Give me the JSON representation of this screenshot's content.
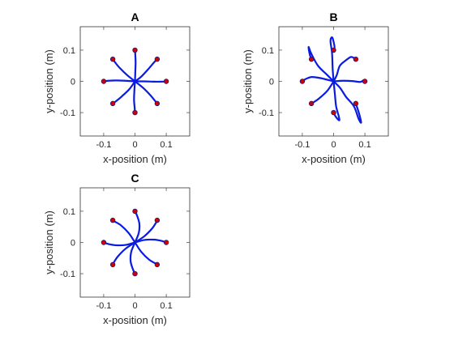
{
  "chart_data": [
    {
      "type": "line",
      "title": "A",
      "xlabel": "x-position (m)",
      "ylabel": "y-position (m)",
      "xlim": [
        -0.175,
        0.175
      ],
      "ylim": [
        -0.175,
        0.175
      ],
      "xticks": [
        -0.1,
        0,
        0.1
      ],
      "yticks": [
        -0.1,
        0,
        0.1
      ],
      "xtick_labels": [
        "-0.1",
        "0",
        "0.1"
      ],
      "ytick_labels": [
        "-0.1",
        "0",
        "0.1"
      ],
      "grid": false,
      "colors": {
        "trajectory": "#0a1be0",
        "target": "#d40000"
      },
      "targets": [
        [
          0.1,
          0
        ],
        [
          0.071,
          0.071
        ],
        [
          0,
          0.1
        ],
        [
          -0.071,
          0.071
        ],
        [
          -0.1,
          0
        ],
        [
          -0.071,
          -0.071
        ],
        [
          0,
          -0.1
        ],
        [
          0.071,
          -0.071
        ]
      ],
      "series": [
        {
          "x": [
            0,
            0.03,
            0.06,
            0.085,
            0.1
          ],
          "y": [
            0,
            0.0,
            -0.001,
            -0.001,
            0
          ]
        },
        {
          "x": [
            0,
            0.02,
            0.045,
            0.062,
            0.071
          ],
          "y": [
            0,
            0.015,
            0.042,
            0.062,
            0.071
          ]
        },
        {
          "x": [
            0,
            0.001,
            0.002,
            0.001,
            0
          ],
          "y": [
            0,
            0.03,
            0.06,
            0.085,
            0.1
          ]
        },
        {
          "x": [
            0,
            -0.025,
            -0.048,
            -0.063,
            -0.071
          ],
          "y": [
            0,
            0.02,
            0.042,
            0.06,
            0.071
          ]
        },
        {
          "x": [
            0,
            -0.03,
            -0.06,
            -0.085,
            -0.1
          ],
          "y": [
            0,
            0.002,
            0.003,
            0.002,
            0
          ]
        },
        {
          "x": [
            0,
            -0.018,
            -0.042,
            -0.06,
            -0.071
          ],
          "y": [
            0,
            -0.025,
            -0.048,
            -0.063,
            -0.071
          ]
        },
        {
          "x": [
            0,
            -0.002,
            -0.003,
            -0.001,
            0
          ],
          "y": [
            0,
            -0.03,
            -0.06,
            -0.085,
            -0.1
          ]
        },
        {
          "x": [
            0,
            0.025,
            0.048,
            0.063,
            0.071
          ],
          "y": [
            0,
            -0.02,
            -0.043,
            -0.061,
            -0.071
          ]
        }
      ]
    },
    {
      "type": "line",
      "title": "B",
      "xlabel": "x-position (m)",
      "ylabel": "y-position (m)",
      "xlim": [
        -0.175,
        0.175
      ],
      "ylim": [
        -0.175,
        0.175
      ],
      "xticks": [
        -0.1,
        0,
        0.1
      ],
      "yticks": [
        -0.1,
        0,
        0.1
      ],
      "xtick_labels": [
        "-0.1",
        "0",
        "0.1"
      ],
      "ytick_labels": [
        "-0.1",
        "0",
        "0.1"
      ],
      "grid": false,
      "colors": {
        "trajectory": "#0a1be0",
        "target": "#d40000"
      },
      "targets": [
        [
          0.1,
          0
        ],
        [
          0.071,
          0.071
        ],
        [
          0,
          0.1
        ],
        [
          -0.071,
          0.071
        ],
        [
          -0.1,
          0
        ],
        [
          -0.071,
          -0.071
        ],
        [
          0,
          -0.1
        ],
        [
          0.071,
          -0.071
        ]
      ],
      "series": [
        {
          "x": [
            0,
            0.03,
            0.06,
            0.085,
            0.095,
            0.1
          ],
          "y": [
            0,
            0.002,
            0.001,
            -0.002,
            0.003,
            0
          ]
        },
        {
          "x": [
            0,
            0.01,
            0.02,
            0.04,
            0.055,
            0.065,
            0.071
          ],
          "y": [
            0,
            0.02,
            0.05,
            0.068,
            0.078,
            0.075,
            0.071
          ]
        },
        {
          "x": [
            0,
            -0.003,
            -0.005,
            -0.01,
            -0.004,
            0.003,
            0
          ],
          "y": [
            0,
            0.04,
            0.09,
            0.13,
            0.14,
            0.11,
            0.1
          ]
        },
        {
          "x": [
            0,
            -0.02,
            -0.05,
            -0.072,
            -0.08,
            -0.076,
            -0.071
          ],
          "y": [
            0,
            0.02,
            0.05,
            0.09,
            0.11,
            0.085,
            0.071
          ]
        },
        {
          "x": [
            0,
            -0.04,
            -0.07,
            -0.088,
            -0.095,
            -0.1
          ],
          "y": [
            0,
            0.01,
            0.014,
            0.008,
            0.004,
            0
          ]
        },
        {
          "x": [
            0,
            -0.02,
            -0.048,
            -0.066,
            -0.074,
            -0.071
          ],
          "y": [
            0,
            -0.03,
            -0.056,
            -0.068,
            -0.074,
            -0.071
          ]
        },
        {
          "x": [
            0,
            0.004,
            0.008,
            0.016,
            0.018,
            0.006,
            0
          ],
          "y": [
            0,
            -0.04,
            -0.08,
            -0.11,
            -0.125,
            -0.112,
            -0.1
          ]
        },
        {
          "x": [
            0,
            0.02,
            0.04,
            0.065,
            0.08,
            0.088,
            0.082,
            0.071
          ],
          "y": [
            0,
            -0.02,
            -0.05,
            -0.08,
            -0.12,
            -0.132,
            -0.105,
            -0.071
          ]
        }
      ]
    },
    {
      "type": "line",
      "title": "C",
      "xlabel": "x-position (m)",
      "ylabel": "y-position (m)",
      "xlim": [
        -0.175,
        0.175
      ],
      "ylim": [
        -0.175,
        0.175
      ],
      "xticks": [
        -0.1,
        0,
        0.1
      ],
      "yticks": [
        -0.1,
        0,
        0.1
      ],
      "xtick_labels": [
        "-0.1",
        "0",
        "0.1"
      ],
      "ytick_labels": [
        "-0.1",
        "0",
        "0.1"
      ],
      "grid": false,
      "colors": {
        "trajectory": "#0a1be0",
        "target": "#d40000"
      },
      "targets": [
        [
          0.1,
          0
        ],
        [
          0.071,
          0.071
        ],
        [
          0,
          0.1
        ],
        [
          -0.071,
          0.071
        ],
        [
          -0.1,
          0
        ],
        [
          -0.071,
          -0.071
        ],
        [
          0,
          -0.1
        ],
        [
          0.071,
          -0.071
        ]
      ],
      "series": [
        {
          "x": [
            0,
            0.03,
            0.06,
            0.085,
            0.1
          ],
          "y": [
            0,
            0.008,
            0.009,
            0.005,
            0
          ]
        },
        {
          "x": [
            0,
            0.03,
            0.055,
            0.067,
            0.071
          ],
          "y": [
            0,
            0.02,
            0.045,
            0.063,
            0.071
          ]
        },
        {
          "x": [
            0,
            0.012,
            0.014,
            0.007,
            0
          ],
          "y": [
            0,
            0.03,
            0.06,
            0.085,
            0.1
          ]
        },
        {
          "x": [
            0,
            -0.02,
            -0.045,
            -0.065,
            -0.071
          ],
          "y": [
            0,
            0.03,
            0.055,
            0.067,
            0.071
          ]
        },
        {
          "x": [
            0,
            -0.03,
            -0.06,
            -0.085,
            -0.1
          ],
          "y": [
            0,
            -0.008,
            -0.009,
            -0.005,
            0
          ]
        },
        {
          "x": [
            0,
            -0.03,
            -0.055,
            -0.067,
            -0.071
          ],
          "y": [
            0,
            -0.02,
            -0.045,
            -0.063,
            -0.071
          ]
        },
        {
          "x": [
            0,
            -0.012,
            -0.014,
            -0.007,
            0
          ],
          "y": [
            0,
            -0.03,
            -0.06,
            -0.085,
            -0.1
          ]
        },
        {
          "x": [
            0,
            0.02,
            0.045,
            0.065,
            0.071
          ],
          "y": [
            0,
            -0.03,
            -0.055,
            -0.067,
            -0.071
          ]
        }
      ]
    }
  ]
}
